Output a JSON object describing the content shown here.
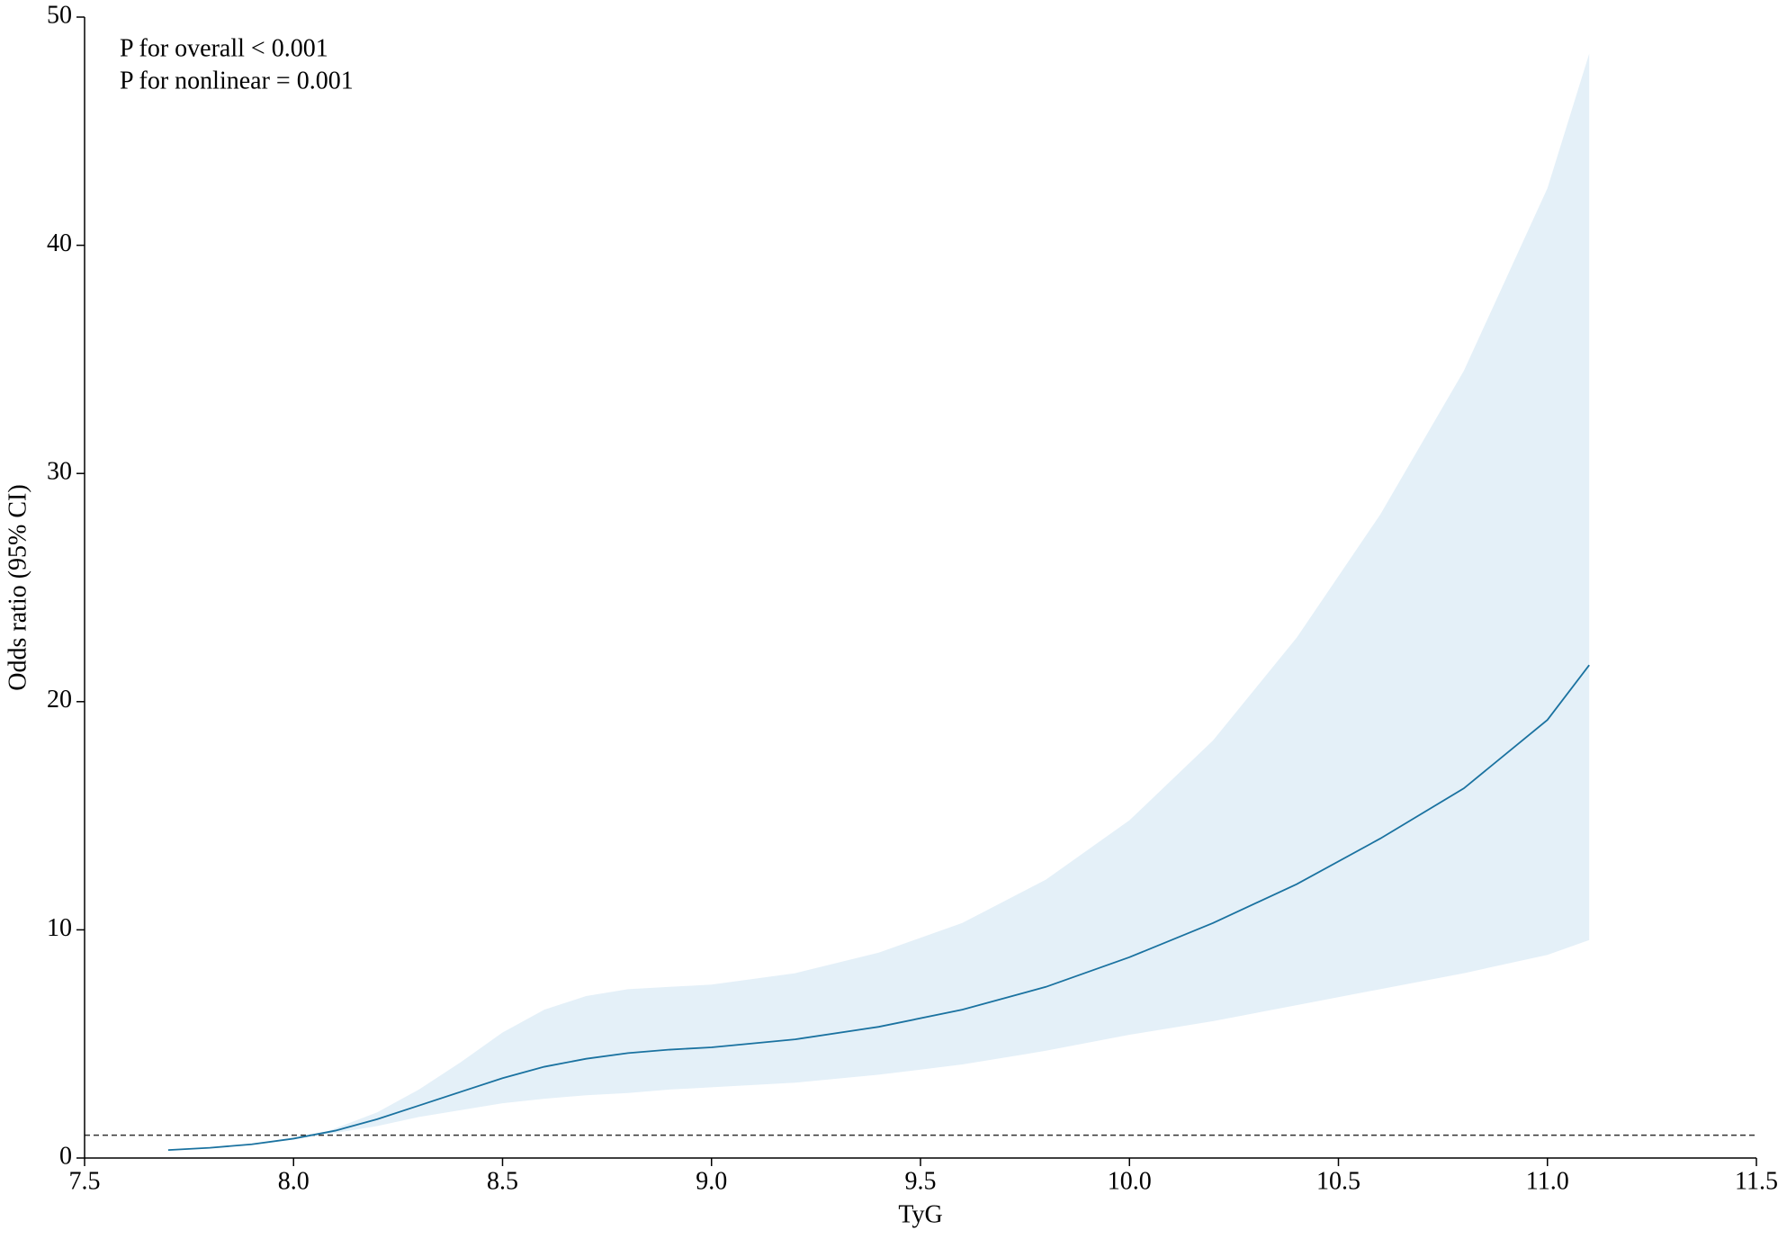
{
  "chart_data": {
    "type": "line",
    "x_label": "TyG",
    "y_label": "Odds ratio (95% CI)",
    "annotations": [
      "P for overall < 0.001",
      "P for nonlinear = 0.001"
    ],
    "x": [
      7.7,
      7.8,
      7.9,
      8.0,
      8.1,
      8.2,
      8.3,
      8.4,
      8.5,
      8.6,
      8.7,
      8.8,
      8.9,
      9.0,
      9.2,
      9.4,
      9.6,
      9.8,
      10.0,
      10.2,
      10.4,
      10.6,
      10.8,
      11.0,
      11.1
    ],
    "series": [
      {
        "color": "#1a72a0",
        "values": [
          0.35,
          0.45,
          0.6,
          0.85,
          1.2,
          1.7,
          2.3,
          2.9,
          3.5,
          4.0,
          4.35,
          4.6,
          4.75,
          4.85,
          5.2,
          5.75,
          6.5,
          7.5,
          8.8,
          10.3,
          12.0,
          14.0,
          16.2,
          19.2,
          21.6
        ]
      }
    ],
    "band": {
      "color": "#e4f0f8",
      "x": [
        8.05,
        8.1,
        8.2,
        8.3,
        8.4,
        8.5,
        8.6,
        8.7,
        8.8,
        8.9,
        9.0,
        9.2,
        9.4,
        9.6,
        9.8,
        10.0,
        10.2,
        10.4,
        10.6,
        10.8,
        11.0,
        11.1
      ],
      "upper": [
        0.95,
        1.3,
        2.0,
        3.0,
        4.2,
        5.5,
        6.5,
        7.1,
        7.4,
        7.5,
        7.6,
        8.1,
        9.0,
        10.3,
        12.2,
        14.8,
        18.3,
        22.8,
        28.2,
        34.5,
        42.5,
        48.4
      ],
      "lower": [
        0.95,
        1.1,
        1.4,
        1.8,
        2.1,
        2.4,
        2.6,
        2.75,
        2.85,
        3.0,
        3.1,
        3.3,
        3.65,
        4.1,
        4.7,
        5.4,
        6.0,
        6.7,
        7.4,
        8.1,
        8.9,
        9.55
      ]
    },
    "reference_line": 1,
    "xlim": [
      7.5,
      11.5
    ],
    "xticks": [
      7.5,
      {
        "value": 8,
        "label": "8.0"
      },
      8.5,
      {
        "value": 9,
        "label": "9.0"
      },
      9.5,
      {
        "value": 10,
        "label": "10.0"
      },
      10.5,
      {
        "value": 11,
        "label": "11.0"
      },
      11.5
    ],
    "ylim": [
      0,
      50
    ],
    "yticks": [
      0,
      10,
      20,
      30,
      40,
      50
    ]
  }
}
